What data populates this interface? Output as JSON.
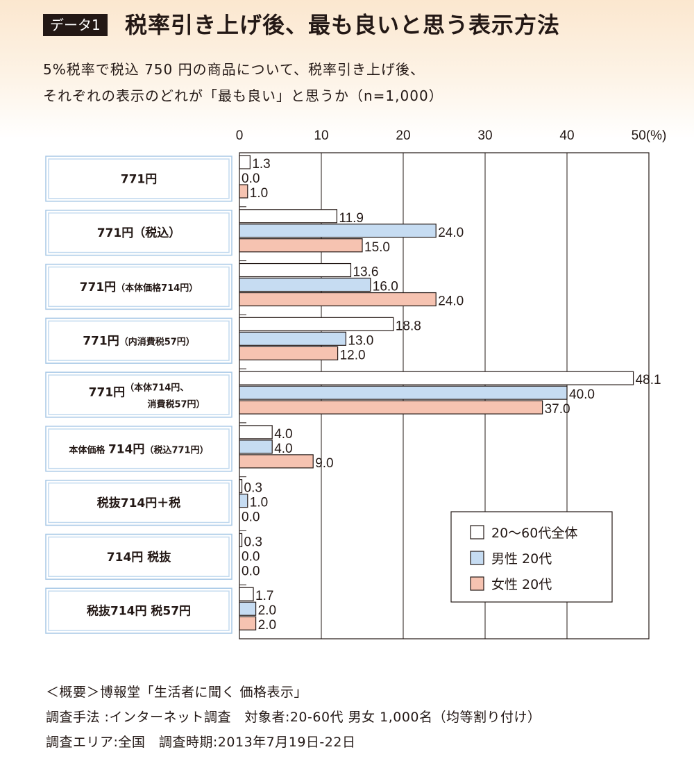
{
  "header": {
    "badge": "データ1",
    "title": "税率引き上げ後、最も良いと思う表示方法",
    "subtitle_line1": "5%税率で税込 750 円の商品について、税率引き上げ後、",
    "subtitle_line2": "それぞれの表示のどれが「最も良い」と思うか（n=1,000）"
  },
  "footnotes": {
    "line1": "＜概要＞博報堂「生活者に聞く 価格表示」",
    "line2": "調査手法 :インターネット調査　対象者:20-60代 男女 1,000名（均等割り付け）",
    "line3": "調査エリア:全国　調査時期:2013年7月19日-22日"
  },
  "chart_data": {
    "type": "bar",
    "orientation": "horizontal",
    "title": "",
    "xlabel": "",
    "ylabel": "",
    "xlim": [
      0,
      50
    ],
    "x_ticks": [
      "0",
      "10",
      "20",
      "30",
      "40",
      "50"
    ],
    "x_unit": "(%)",
    "grid": true,
    "legend_position": "bottom-right",
    "categories": [
      {
        "main": "771円",
        "sub": ""
      },
      {
        "main": "771円（税込）",
        "sub": ""
      },
      {
        "main": "771円",
        "sub": "（本体価格714円）"
      },
      {
        "main": "771円",
        "sub": "（内消費税57円）"
      },
      {
        "main": "771円",
        "sub": "（本体714円、",
        "sub2": "消費税57円）"
      },
      {
        "pre": "本体価格 ",
        "main": "714円",
        "sub": "（税込771円）"
      },
      {
        "main": "税抜714円＋税",
        "sub": ""
      },
      {
        "main": "714円 税抜",
        "sub": ""
      },
      {
        "main": "税抜714円 税57円",
        "sub": ""
      }
    ],
    "series": [
      {
        "name": "20〜60代全体",
        "color": "#ffffff",
        "values": [
          1.3,
          11.9,
          13.6,
          18.8,
          48.1,
          4.0,
          0.3,
          0.3,
          1.7
        ],
        "labels": [
          "1.3",
          "11.9",
          "13.6",
          "18.8",
          "48.1",
          "4.0",
          "0.3",
          "0.3",
          "1.7"
        ]
      },
      {
        "name": "男性 20代",
        "color": "#c6dcf2",
        "values": [
          0.0,
          24.0,
          16.0,
          13.0,
          40.0,
          4.0,
          1.0,
          0.0,
          2.0
        ],
        "labels": [
          "0.0",
          "24.0",
          "16.0",
          "13.0",
          "40.0",
          "4.0",
          "1.0",
          "0.0",
          "2.0"
        ]
      },
      {
        "name": "女性 20代",
        "color": "#f6c3b1",
        "values": [
          1.0,
          15.0,
          24.0,
          12.0,
          37.0,
          9.0,
          0.0,
          0.0,
          2.0
        ],
        "labels": [
          "1.0",
          "15.0",
          "24.0",
          "12.0",
          "37.0",
          "9.0",
          "0.0",
          "0.0",
          "2.0"
        ]
      }
    ]
  }
}
